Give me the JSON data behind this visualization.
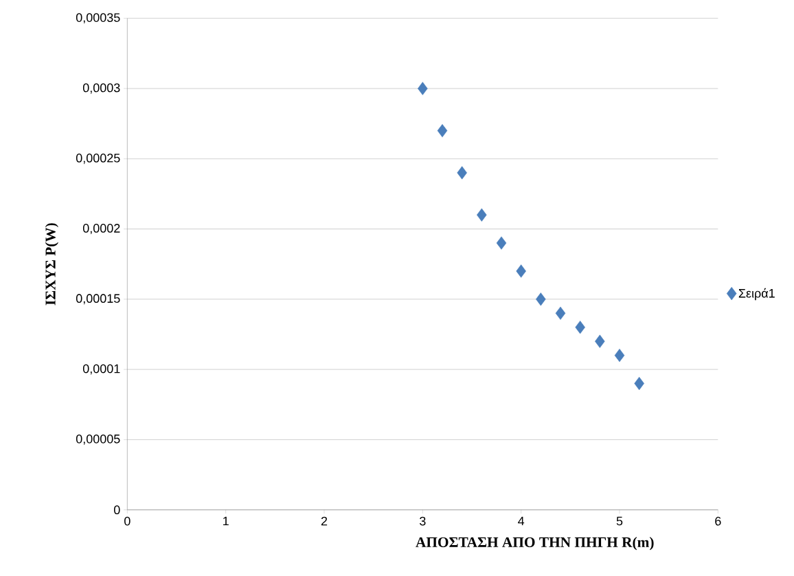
{
  "chart_data": {
    "type": "scatter",
    "xlabel": "ΑΠΟΣΤΑΣΗ  ΑΠΟ ΤΗΝ ΠΗΓΗ R(m)",
    "ylabel": "ΙΣΧΥΣ P(W)",
    "x": [
      3.0,
      3.2,
      3.4,
      3.6,
      3.8,
      4.0,
      4.2,
      4.4,
      4.6,
      4.8,
      5.0,
      5.2
    ],
    "series": [
      {
        "name": "Σειρά1",
        "color": "#4a7ebb",
        "values": [
          0.0003,
          0.00027,
          0.00024,
          0.00021,
          0.00019,
          0.00017,
          0.00015,
          0.00014,
          0.00013,
          0.00012,
          0.00011,
          9e-05
        ]
      }
    ],
    "xlim": [
      0,
      6
    ],
    "xticks": [
      0,
      1,
      2,
      3,
      4,
      5,
      6
    ],
    "ylim": [
      0,
      0.00035
    ],
    "yticks": [
      0,
      {
        "value": 5e-05,
        "label": "0,00005"
      },
      {
        "value": 0.0001,
        "label": "0,0001"
      },
      {
        "value": 0.00015,
        "label": "0,00015"
      },
      {
        "value": 0.0002,
        "label": "0,0002"
      },
      {
        "value": 0.00025,
        "label": "0,00025"
      },
      {
        "value": 0.0003,
        "label": "0,0003"
      },
      {
        "value": 0.00035,
        "label": "0,00035"
      }
    ],
    "grid": "y",
    "legend": "right",
    "marker": "diamond"
  }
}
